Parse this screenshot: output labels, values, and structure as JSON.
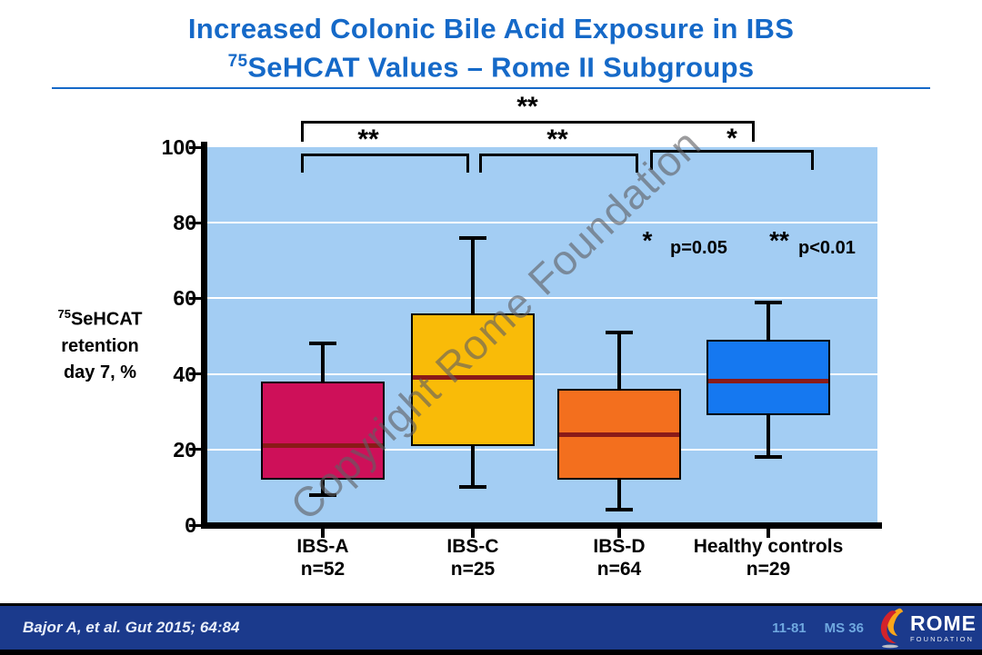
{
  "header": {
    "title": "Increased Colonic Bile Acid Exposure in IBS",
    "subtitle_sup": "75",
    "subtitle_rest": "SeHCAT Values – Rome II Subgroups"
  },
  "watermark": "Copyright Rome Foundation",
  "chart_data": {
    "type": "boxplot",
    "title": "Increased Colonic Bile Acid Exposure in IBS",
    "subtitle": "75SeHCAT Values – Rome II Subgroups",
    "ylabel": {
      "sup": "75",
      "line1": "SeHCAT",
      "line2": "retention",
      "line3": "day 7, %"
    },
    "ylim": [
      0,
      100
    ],
    "yticks": [
      0,
      20,
      40,
      60,
      80,
      100
    ],
    "gridlines_at": [
      20,
      40,
      60,
      80
    ],
    "grid": true,
    "legend_position": "upper-right-inside",
    "plot_bg": "#A3CDF3",
    "median_color": "#8A1A18",
    "categories": [
      "IBS-A",
      "IBS-C",
      "IBS-D",
      "Healthy controls"
    ],
    "groups": [
      {
        "label": "IBS-A",
        "n_label": "n=52",
        "color": "#CE1059",
        "whisker_low": 8,
        "q1": 12,
        "median": 21,
        "q3": 38,
        "whisker_high": 48
      },
      {
        "label": "IBS-C",
        "n_label": "n=25",
        "color": "#F9BB08",
        "whisker_low": 10,
        "q1": 21,
        "median": 39,
        "q3": 56,
        "whisker_high": 76
      },
      {
        "label": "IBS-D",
        "n_label": "n=64",
        "color": "#F36F1E",
        "whisker_low": 4,
        "q1": 12,
        "median": 24,
        "q3": 36,
        "whisker_high": 51
      },
      {
        "label": "Healthy controls",
        "n_label": "n=29",
        "color": "#1578F0",
        "whisker_low": 18,
        "q1": 29,
        "median": 38,
        "q3": 49,
        "whisker_high": 59
      }
    ],
    "significance": [
      {
        "label": "**",
        "between": [
          "IBS-A",
          "Healthy controls"
        ]
      },
      {
        "label": "**",
        "between": [
          "IBS-A",
          "IBS-C"
        ]
      },
      {
        "label": "**",
        "between": [
          "IBS-C",
          "IBS-D"
        ]
      },
      {
        "label": "*",
        "between": [
          "IBS-D",
          "Healthy controls"
        ]
      }
    ],
    "legend": [
      {
        "symbol": "*",
        "text": "p=0.05"
      },
      {
        "symbol": "**",
        "text": "p<0.01"
      }
    ]
  },
  "footer": {
    "citation": "Bajor A, et al. Gut 2015; 64:84",
    "code_left": "11-81",
    "code_right": "MS 36",
    "logo": {
      "name": "ROME",
      "sub": "FOUNDATION"
    }
  }
}
